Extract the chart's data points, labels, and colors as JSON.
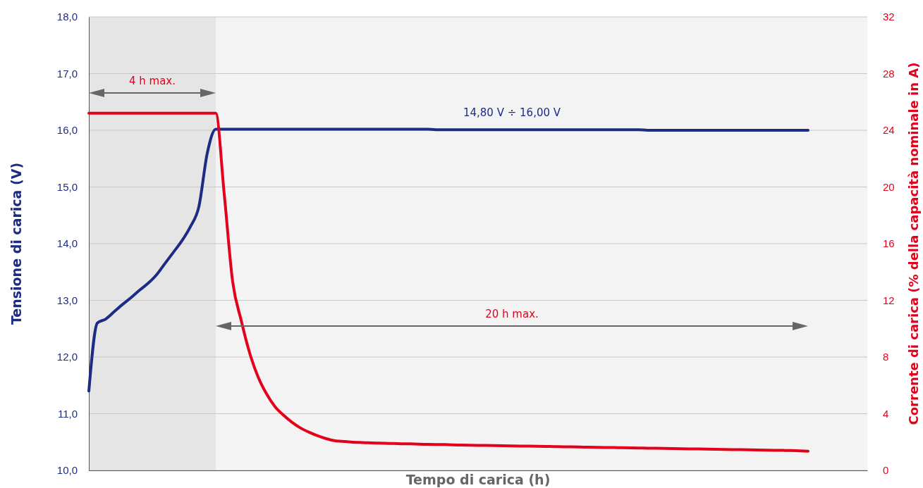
{
  "chart_data": {
    "type": "line",
    "xlabel": "Tempo di carica (h)",
    "ylabel": "Tensione di carica (V)",
    "y2label": "Corrente di carica (% della capacità nominale in A)",
    "categories": [
      null,
      null,
      null,
      null,
      null,
      null,
      null,
      null,
      null,
      null,
      null,
      null,
      null,
      null,
      null,
      null,
      null,
      null,
      null,
      null,
      null,
      null,
      null,
      null,
      null,
      null,
      null,
      null,
      null,
      null,
      null,
      null,
      null,
      null,
      null,
      null,
      null,
      null,
      null,
      null,
      null,
      null,
      null,
      null,
      null,
      null,
      null,
      null,
      null,
      null,
      null,
      null,
      null,
      null,
      null,
      null,
      null,
      null,
      null,
      null,
      null,
      null,
      null,
      null,
      null,
      null,
      null,
      null,
      null,
      null,
      null,
      null,
      null,
      null,
      null,
      null,
      null,
      null,
      null,
      null,
      null,
      null,
      null,
      null,
      null,
      null,
      null,
      null,
      null,
      null,
      null,
      null,
      null
    ],
    "ylim": [
      10,
      18
    ],
    "yticks": [
      {
        "value": 10,
        "label": "10,0"
      },
      {
        "value": 11,
        "label": "11,0"
      },
      {
        "value": 12,
        "label": "12,0"
      },
      {
        "value": 13,
        "label": "13,0"
      },
      {
        "value": 14,
        "label": "14,0"
      },
      {
        "value": 15,
        "label": "15,0"
      },
      {
        "value": 16,
        "label": "16,0"
      },
      {
        "value": 17,
        "label": "17,0"
      },
      {
        "value": 18,
        "label": "18,0"
      }
    ],
    "y2lim": [
      0,
      32
    ],
    "y2ticks": [
      0,
      4,
      8,
      12,
      16,
      20,
      24,
      28,
      32
    ],
    "grid": "y",
    "series": [
      {
        "color": "#1c2b84",
        "values": [
          11.4,
          12.6,
          12.67,
          12.8,
          12.93,
          13.05,
          13.18,
          13.3,
          13.45,
          13.65,
          13.85,
          14.05,
          14.3,
          14.65,
          15.6,
          16.02,
          16.02,
          16.02,
          16.02,
          16.02,
          16.02,
          16.02,
          16.02,
          16.02,
          16.02,
          16.02,
          16.02,
          16.02,
          16.02,
          16.02,
          16.02,
          16.02,
          16.02,
          16.02,
          16.02,
          16.02,
          16.02,
          16.02,
          16.02,
          16.02,
          16.02,
          16.01,
          16.01,
          16.01,
          16.01,
          16.01,
          16.01,
          16.01,
          16.01,
          16.01,
          16.01,
          16.01,
          16.01,
          16.01,
          16.01,
          16.01,
          16.01,
          16.01,
          16.01,
          16.01,
          16.01,
          16.01,
          16.01,
          16.01,
          16.01,
          16.01,
          16.0,
          16.0,
          16.0,
          16.0,
          16.0,
          16.0,
          16.0,
          16.0,
          16.0,
          16.0,
          16.0,
          16.0,
          16.0,
          16.0,
          16.0,
          16.0,
          16.0,
          16.0,
          16.0,
          16.0,
          null,
          null,
          null,
          null,
          null,
          null,
          null
        ]
      },
      {
        "color": "#e3001b",
        "axis": "y2",
        "values": [
          25.2,
          25.2,
          25.2,
          25.2,
          25.2,
          25.2,
          25.2,
          25.2,
          25.2,
          25.2,
          25.2,
          25.2,
          25.2,
          25.2,
          25.2,
          25.2,
          19.5,
          13.3,
          10.6,
          8.3,
          6.6,
          5.4,
          4.5,
          3.9,
          3.4,
          3.0,
          2.7,
          2.45,
          2.25,
          2.1,
          2.05,
          2.0,
          1.97,
          1.95,
          1.93,
          1.91,
          1.9,
          1.88,
          1.87,
          1.85,
          1.84,
          1.83,
          1.82,
          1.8,
          1.79,
          1.78,
          1.77,
          1.76,
          1.75,
          1.74,
          1.73,
          1.72,
          1.71,
          1.7,
          1.69,
          1.68,
          1.67,
          1.66,
          1.65,
          1.64,
          1.63,
          1.62,
          1.61,
          1.6,
          1.59,
          1.58,
          1.57,
          1.56,
          1.55,
          1.54,
          1.53,
          1.52,
          1.51,
          1.5,
          1.49,
          1.48,
          1.47,
          1.46,
          1.45,
          1.44,
          1.43,
          1.42,
          1.41,
          1.4,
          1.38,
          1.36,
          null,
          null,
          null,
          null,
          null,
          null,
          null
        ]
      }
    ],
    "annotations": [
      "4 h max.",
      "20 h max.",
      "14,80 V ÷ 16,00 V"
    ]
  }
}
